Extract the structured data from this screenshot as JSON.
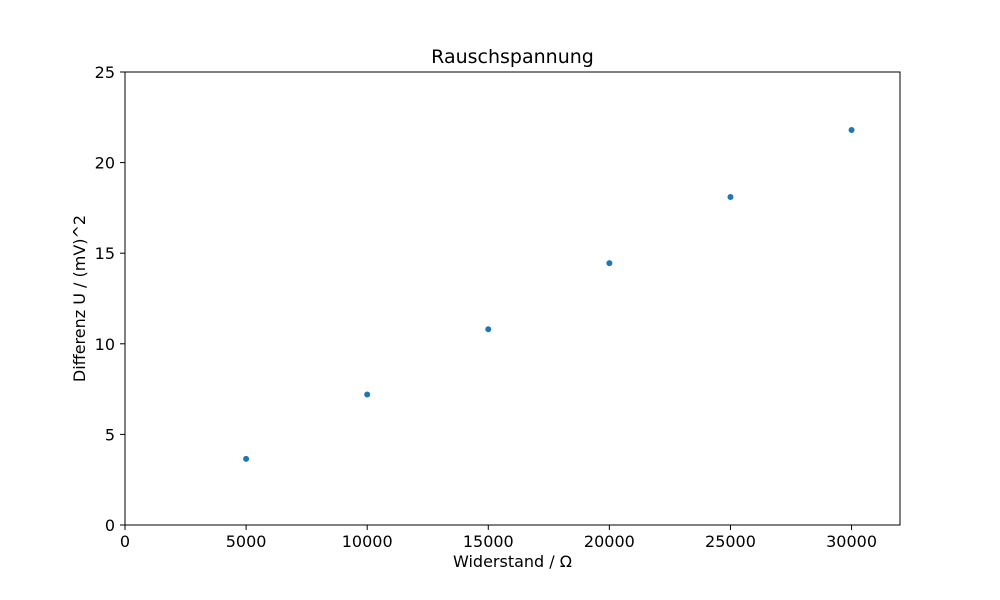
{
  "chart_data": {
    "type": "scatter",
    "title": "Rauschspannung",
    "xlabel": "Widerstand / Ω",
    "ylabel": "Differenz U / (mV)^2",
    "xlim": [
      0,
      32000
    ],
    "ylim": [
      0,
      25
    ],
    "xticks": [
      0,
      5000,
      10000,
      15000,
      20000,
      25000,
      30000
    ],
    "yticks": [
      0,
      5,
      10,
      15,
      20,
      25
    ],
    "grid": false,
    "marker_color": "#1f77b4",
    "points": [
      {
        "x": 5000,
        "y": 3.65
      },
      {
        "x": 10000,
        "y": 7.2
      },
      {
        "x": 15000,
        "y": 10.8
      },
      {
        "x": 20000,
        "y": 14.45
      },
      {
        "x": 25000,
        "y": 18.1
      },
      {
        "x": 30000,
        "y": 21.8
      }
    ]
  }
}
